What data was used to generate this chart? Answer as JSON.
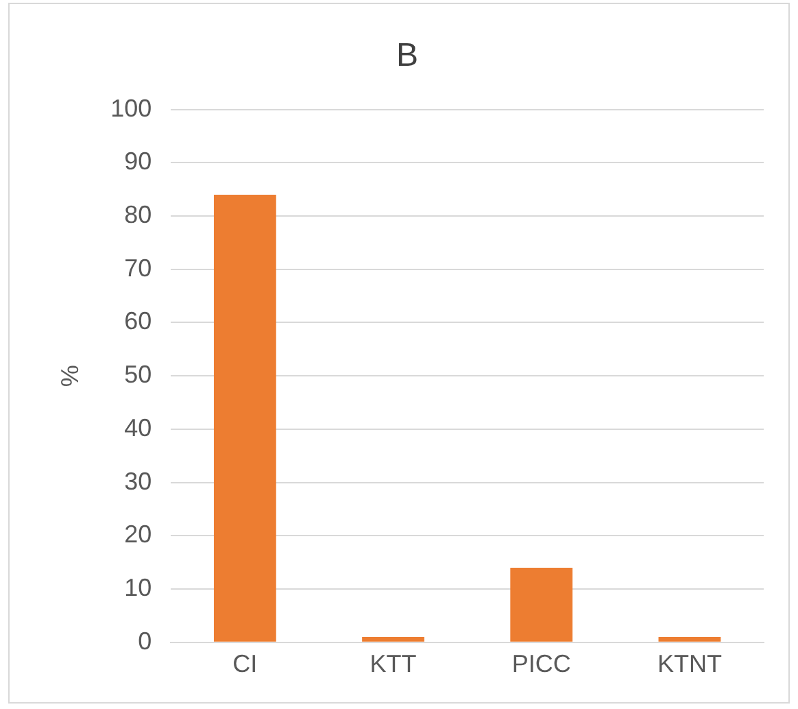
{
  "chart_data": {
    "type": "bar",
    "title": "B",
    "ylabel": "%",
    "categories": [
      "CI",
      "KTT",
      "PICC",
      "KTNT"
    ],
    "values": [
      84,
      1,
      14,
      1
    ],
    "color": "#ed7d31",
    "ylim": [
      0,
      100
    ],
    "yticks": [
      0,
      10,
      20,
      30,
      40,
      50,
      60,
      70,
      80,
      90,
      100
    ],
    "grid": "y",
    "legend": false
  }
}
